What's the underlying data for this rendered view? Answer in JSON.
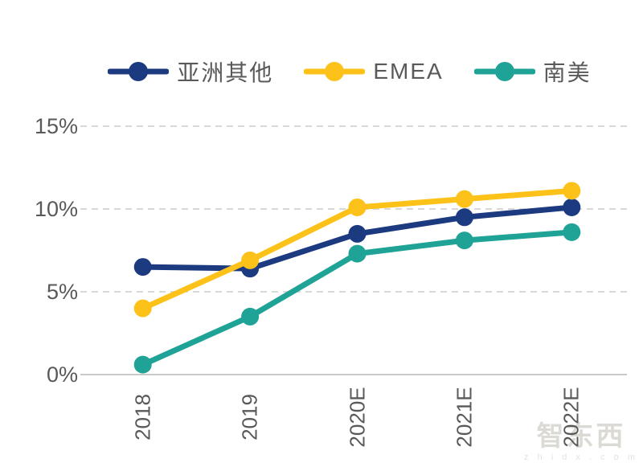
{
  "chart_data": {
    "type": "line",
    "title": "",
    "xlabel": "",
    "ylabel": "",
    "categories": [
      "2018",
      "2019",
      "2020E",
      "2021E",
      "2022E"
    ],
    "series": [
      {
        "name": "亚洲其他",
        "color": "#1B3A80",
        "values": [
          6.5,
          6.4,
          8.5,
          9.5,
          10.1
        ]
      },
      {
        "name": "EMEA",
        "color": "#FDC219",
        "values": [
          4.0,
          6.9,
          10.1,
          10.6,
          11.1
        ]
      },
      {
        "name": "南美",
        "color": "#1FA396",
        "values": [
          0.6,
          3.5,
          7.3,
          8.1,
          8.6
        ]
      }
    ],
    "y_ticks": [
      "0%",
      "5%",
      "10%",
      "15%"
    ],
    "y_tick_values": [
      0,
      5,
      10,
      15
    ],
    "ylim": [
      0,
      16
    ],
    "grid": "horizontal-dashed",
    "legend_position": "top",
    "marker": "circle",
    "axis_text_color": "#595959",
    "gridline_color": "#d8d8d8",
    "axis_line_color": "#c9c9c9"
  },
  "watermark": {
    "title": "智东西",
    "subtitle": "z h i d x . c o m"
  }
}
